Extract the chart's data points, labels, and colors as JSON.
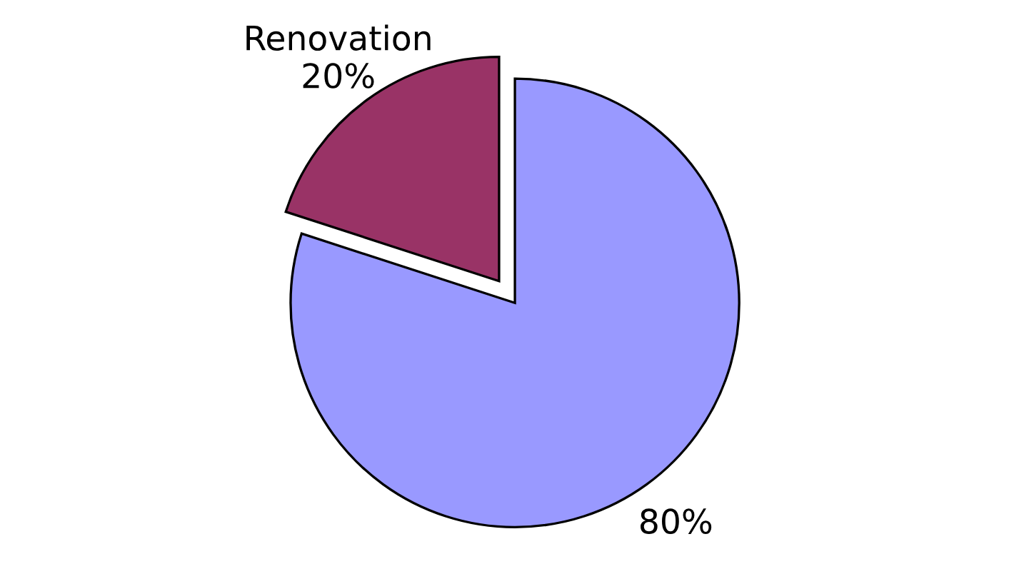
{
  "chart_data": {
    "type": "pie",
    "categories": [
      null,
      "Renovation"
    ],
    "values": [
      80,
      20
    ],
    "colors": [
      "#9999ff",
      "#993366"
    ],
    "value_labels": [
      "80%",
      "20%"
    ]
  }
}
